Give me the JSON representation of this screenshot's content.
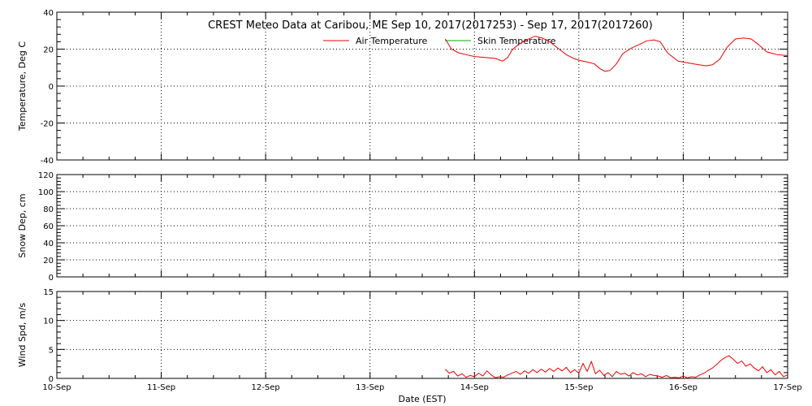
{
  "chart_data": {
    "type": "line",
    "title": "CREST Meteo Data at Caribou, ME   Sep 10, 2017(2017253) - Sep 17, 2017(2017260)",
    "xlabel": "Date (EST)",
    "x_tick_labels": [
      "10-Sep",
      "11-Sep",
      "12-Sep",
      "13-Sep",
      "14-Sep",
      "15-Sep",
      "16-Sep",
      "17-Sep"
    ],
    "x_range_days": [
      0,
      7
    ],
    "grid": true,
    "legend_position": "top-center",
    "colors": {
      "air_temperature": "#ee0000",
      "skin_temperature": "#00aa00",
      "grid": "#000000"
    },
    "panels": [
      {
        "ylabel": "Temperature, Deg C",
        "ylim": [
          -40,
          40
        ],
        "y_ticks": [
          -40,
          -20,
          0,
          20,
          40
        ],
        "series": [
          {
            "name": "Air Temperature",
            "color": "#ee0000",
            "x": [
              3.72,
              3.78,
              3.85,
              3.92,
              4.0,
              4.1,
              4.2,
              4.27,
              4.32,
              4.36,
              4.42,
              4.5,
              4.58,
              4.65,
              4.72,
              4.8,
              4.88,
              4.95,
              5.0,
              5.08,
              5.15,
              5.2,
              5.25,
              5.3,
              5.36,
              5.42,
              5.5,
              5.58,
              5.65,
              5.72,
              5.78,
              5.85,
              5.95,
              6.05,
              6.15,
              6.22,
              6.28,
              6.35,
              6.42,
              6.5,
              6.58,
              6.65,
              6.72,
              6.8,
              6.9,
              7.0
            ],
            "y": [
              25.5,
              20,
              18,
              17,
              16,
              15.5,
              15,
              13.5,
              15.5,
              19.5,
              22.5,
              25,
              27,
              26,
              24,
              20.5,
              17,
              15,
              14,
              13,
              12,
              9.5,
              8,
              8.5,
              12,
              17.5,
              20.5,
              22.5,
              24.5,
              25,
              24,
              18,
              13.5,
              12.5,
              11.5,
              11,
              11.5,
              14.5,
              21,
              25.5,
              26,
              25.5,
              22.5,
              18.5,
              17,
              16.5
            ]
          },
          {
            "name": "Skin Temperature",
            "color": "#00aa00",
            "x": [],
            "y": []
          }
        ]
      },
      {
        "ylabel": "Snow Dep, cm",
        "ylim": [
          0,
          120
        ],
        "y_ticks": [
          0,
          20,
          40,
          60,
          80,
          100,
          120
        ],
        "series": []
      },
      {
        "ylabel": "Wind Spd, m/s",
        "ylim": [
          0,
          15
        ],
        "y_ticks": [
          0,
          5,
          10,
          15
        ],
        "series": [
          {
            "name": "Wind Speed",
            "color": "#ee0000",
            "x": [
              3.72,
              3.76,
              3.8,
              3.84,
              3.88,
              3.92,
              3.96,
              4.0,
              4.04,
              4.08,
              4.12,
              4.16,
              4.2,
              4.24,
              4.28,
              4.32,
              4.36,
              4.4,
              4.44,
              4.48,
              4.52,
              4.56,
              4.6,
              4.64,
              4.68,
              4.72,
              4.76,
              4.8,
              4.84,
              4.88,
              4.92,
              4.96,
              5.0,
              5.04,
              5.08,
              5.12,
              5.16,
              5.2,
              5.24,
              5.28,
              5.32,
              5.36,
              5.4,
              5.44,
              5.48,
              5.52,
              5.56,
              5.6,
              5.64,
              5.68,
              5.72,
              5.76,
              5.8,
              5.84,
              5.88,
              5.92,
              5.96,
              6.0,
              6.04,
              6.08,
              6.12,
              6.16,
              6.2,
              6.24,
              6.28,
              6.32,
              6.36,
              6.4,
              6.44,
              6.48,
              6.52,
              6.56,
              6.6,
              6.64,
              6.68,
              6.72,
              6.76,
              6.8,
              6.84,
              6.88,
              6.92,
              6.96,
              7.0
            ],
            "y": [
              1.6,
              0.9,
              1.2,
              0.4,
              0.8,
              0.2,
              0.5,
              0.3,
              0.9,
              0.4,
              1.3,
              0.6,
              0.1,
              0.3,
              0.2,
              0.6,
              0.9,
              1.2,
              0.7,
              1.3,
              0.9,
              1.5,
              1.0,
              1.6,
              1.1,
              1.7,
              1.2,
              1.8,
              1.3,
              1.9,
              1.0,
              1.5,
              0.9,
              2.6,
              1.2,
              2.9,
              0.8,
              1.4,
              0.5,
              1.0,
              0.3,
              1.2,
              0.7,
              0.9,
              0.4,
              1.0,
              0.6,
              0.8,
              0.3,
              0.7,
              0.5,
              0.4,
              0.2,
              0.5,
              0.1,
              0.2,
              0.1,
              0.4,
              0.1,
              0.3,
              0.2,
              0.6,
              0.9,
              1.4,
              1.8,
              2.4,
              3.1,
              3.6,
              3.9,
              3.3,
              2.6,
              3.0,
              2.1,
              2.5,
              1.8,
              1.3,
              2.0,
              1.0,
              1.5,
              0.6,
              1.2,
              0.3,
              0.6
            ]
          }
        ]
      }
    ]
  }
}
